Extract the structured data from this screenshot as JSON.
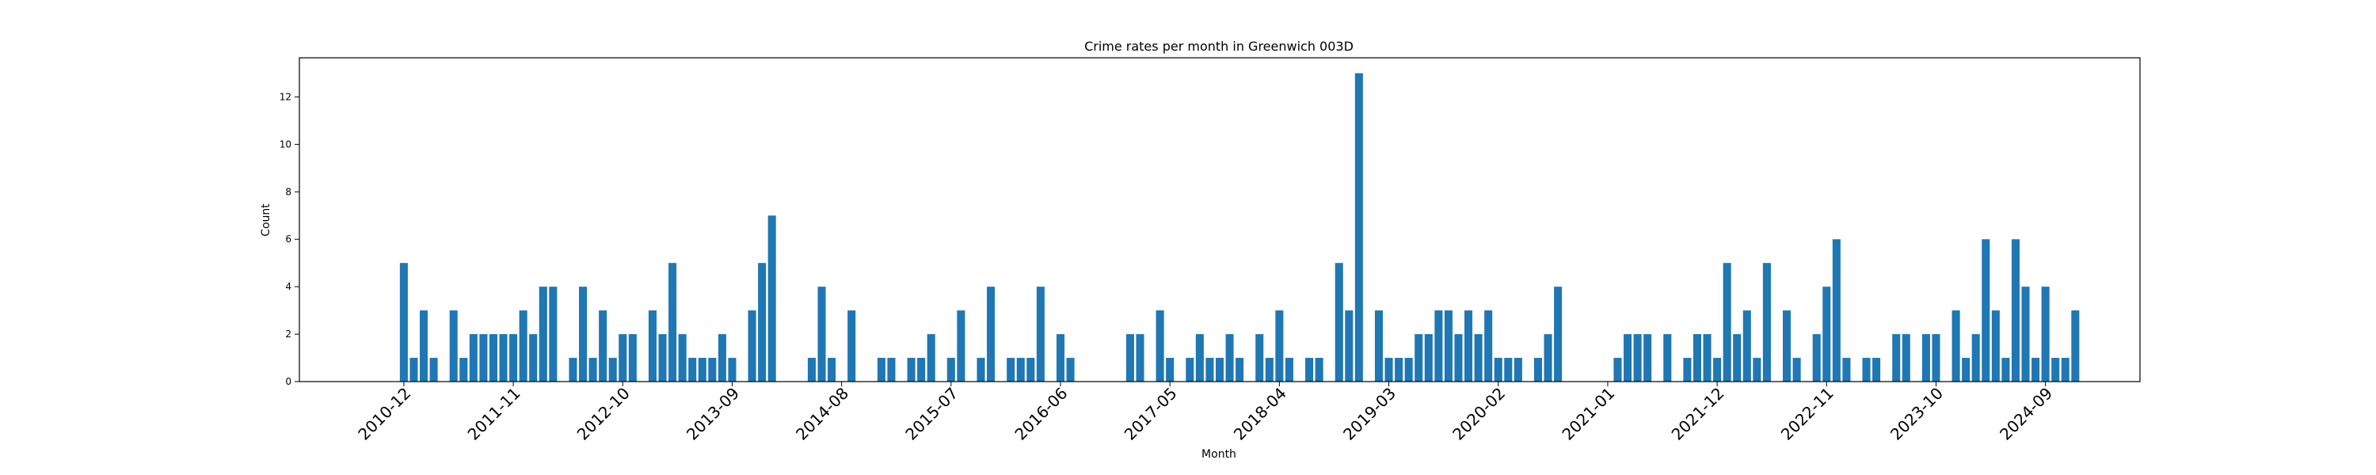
{
  "chart_data": {
    "type": "bar",
    "title": "Crime rates per month in Greenwich 003D",
    "xlabel": "Month",
    "ylabel": "Count",
    "ylim": [
      0,
      13.65
    ],
    "yticks": [
      0,
      2,
      4,
      6,
      8,
      10,
      12
    ],
    "grid": false,
    "color": "#1f77b4",
    "tick_labels": [
      "2010-12",
      "2011-11",
      "2012-10",
      "2013-09",
      "2014-08",
      "2015-07",
      "2016-06",
      "2017-05",
      "2018-04",
      "2019-03",
      "2020-02",
      "2021-01",
      "2021-12",
      "2022-11",
      "2023-10",
      "2024-09"
    ],
    "categories": [
      "2010-12",
      "2011-01",
      "2011-02",
      "2011-03",
      "2011-05",
      "2011-06",
      "2011-07",
      "2011-08",
      "2011-09",
      "2011-10",
      "2011-11",
      "2011-12",
      "2012-01",
      "2012-02",
      "2012-03",
      "2012-05",
      "2012-06",
      "2012-07",
      "2012-08",
      "2012-09",
      "2012-10",
      "2012-11",
      "2013-01",
      "2013-02",
      "2013-03",
      "2013-04",
      "2013-05",
      "2013-06",
      "2013-07",
      "2013-08",
      "2013-09",
      "2013-11",
      "2013-12",
      "2014-01",
      "2014-05",
      "2014-06",
      "2014-07",
      "2014-09",
      "2014-12",
      "2015-01",
      "2015-03",
      "2015-04",
      "2015-05",
      "2015-07",
      "2015-08",
      "2015-10",
      "2015-11",
      "2016-01",
      "2016-02",
      "2016-03",
      "2016-04",
      "2016-06",
      "2016-07",
      "2017-01",
      "2017-02",
      "2017-04",
      "2017-05",
      "2017-07",
      "2017-08",
      "2017-09",
      "2017-10",
      "2017-11",
      "2017-12",
      "2018-02",
      "2018-03",
      "2018-04",
      "2018-05",
      "2018-07",
      "2018-08",
      "2018-10",
      "2018-11",
      "2018-12",
      "2019-02",
      "2019-03",
      "2019-04",
      "2019-05",
      "2019-06",
      "2019-07",
      "2019-08",
      "2019-09",
      "2019-10",
      "2019-11",
      "2019-12",
      "2020-01",
      "2020-02",
      "2020-03",
      "2020-04",
      "2020-06",
      "2020-07",
      "2020-08",
      "2021-02",
      "2021-03",
      "2021-04",
      "2021-05",
      "2021-07",
      "2021-09",
      "2021-10",
      "2021-11",
      "2021-12",
      "2022-01",
      "2022-02",
      "2022-03",
      "2022-04",
      "2022-05",
      "2022-07",
      "2022-08",
      "2022-10",
      "2022-11",
      "2022-12",
      "2023-01",
      "2023-03",
      "2023-04",
      "2023-06",
      "2023-07",
      "2023-09",
      "2023-10",
      "2023-12",
      "2024-01",
      "2024-02",
      "2024-03",
      "2024-04",
      "2024-05",
      "2024-06",
      "2024-07",
      "2024-08",
      "2024-09",
      "2024-10",
      "2024-11",
      "2024-12"
    ],
    "values": [
      5,
      1,
      3,
      1,
      3,
      1,
      2,
      2,
      2,
      2,
      2,
      3,
      2,
      4,
      4,
      1,
      4,
      1,
      3,
      1,
      2,
      2,
      3,
      2,
      5,
      2,
      1,
      1,
      1,
      2,
      1,
      3,
      5,
      7,
      1,
      4,
      1,
      3,
      1,
      1,
      1,
      1,
      2,
      1,
      3,
      1,
      4,
      1,
      1,
      1,
      4,
      2,
      1,
      2,
      2,
      3,
      1,
      1,
      2,
      1,
      1,
      2,
      1,
      2,
      1,
      3,
      1,
      1,
      1,
      5,
      3,
      13,
      3,
      1,
      1,
      1,
      2,
      2,
      3,
      3,
      2,
      3,
      2,
      3,
      1,
      1,
      1,
      1,
      2,
      4,
      1,
      2,
      2,
      2,
      2,
      1,
      2,
      2,
      1,
      5,
      2,
      3,
      1,
      5,
      3,
      1,
      2,
      4,
      6,
      1,
      1,
      1,
      2,
      2,
      2,
      2,
      3,
      1,
      2,
      6,
      3,
      1,
      6,
      4,
      1,
      4,
      1,
      1,
      3
    ]
  }
}
